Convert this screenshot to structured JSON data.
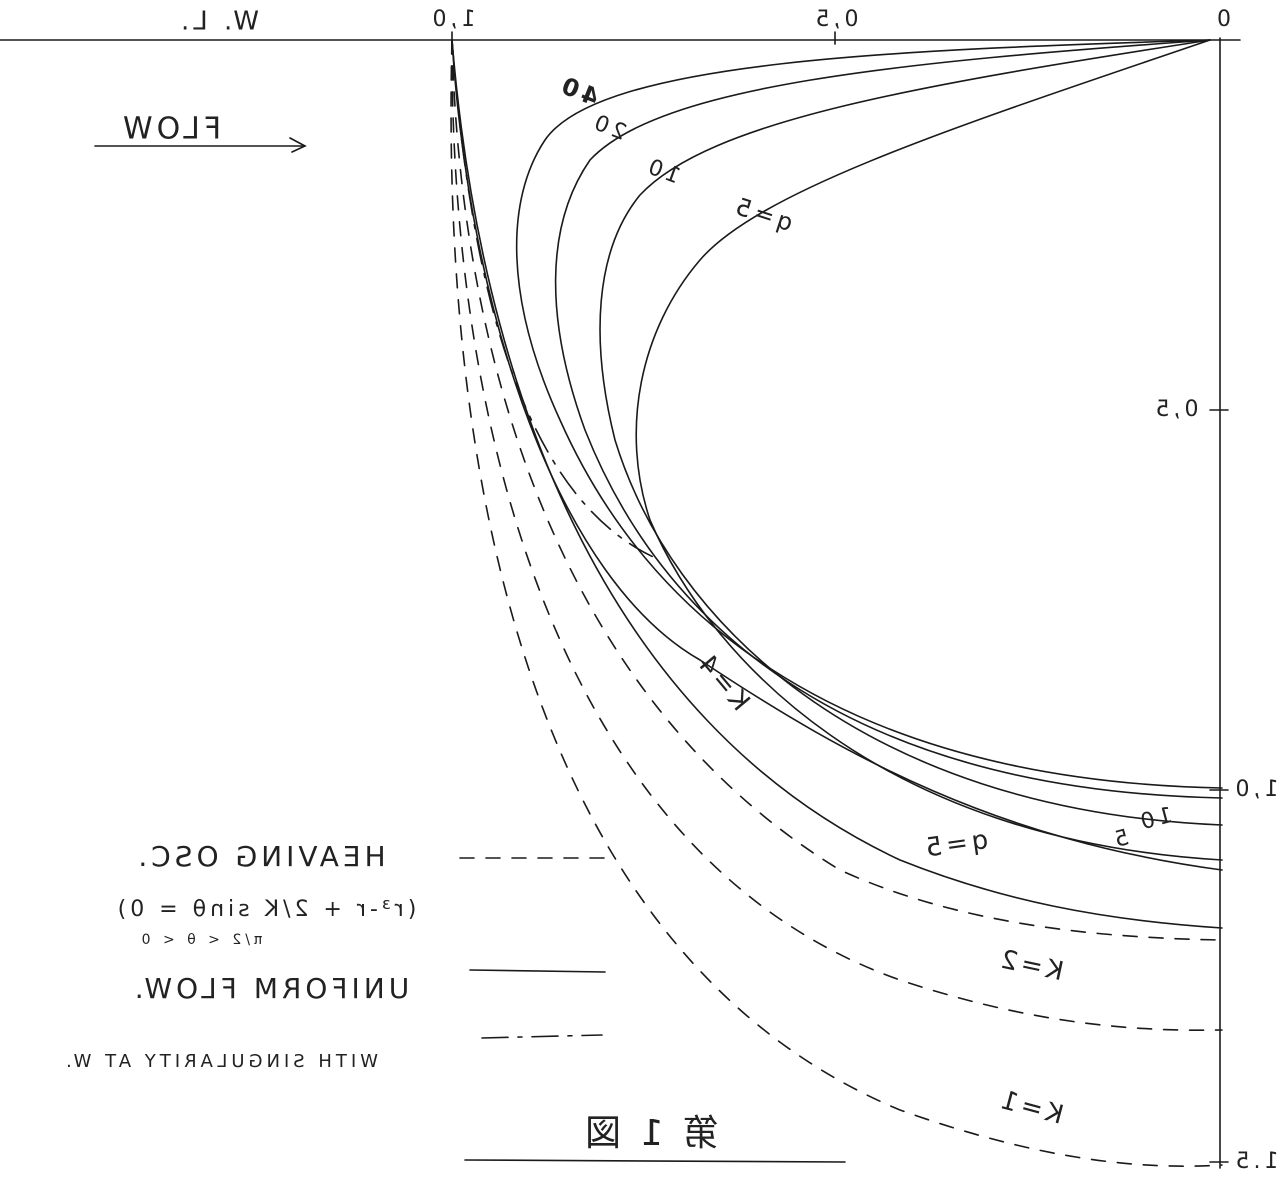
{
  "axes": {
    "top_ticks": [
      "W. L.",
      "1,0",
      "0,5",
      "0"
    ],
    "right_ticks": [
      "0,5",
      "1,0",
      "1.5"
    ]
  },
  "flow_label": "FLOW",
  "curve_labels": [
    "40",
    "20",
    "10",
    "q=5",
    "10",
    "5",
    "q=5",
    "K=4",
    "K=2",
    "K=1"
  ],
  "legend": {
    "heaving": {
      "label": "HEAVING OSC.",
      "equation": "(r³-r + 2/K sinθ = 0)",
      "range": "π/2 < θ < 0"
    },
    "uniform": "UNIFORM FLOW.",
    "singular": "WITH SINGULARITY AT W."
  },
  "figure_caption": "第 1 図"
}
